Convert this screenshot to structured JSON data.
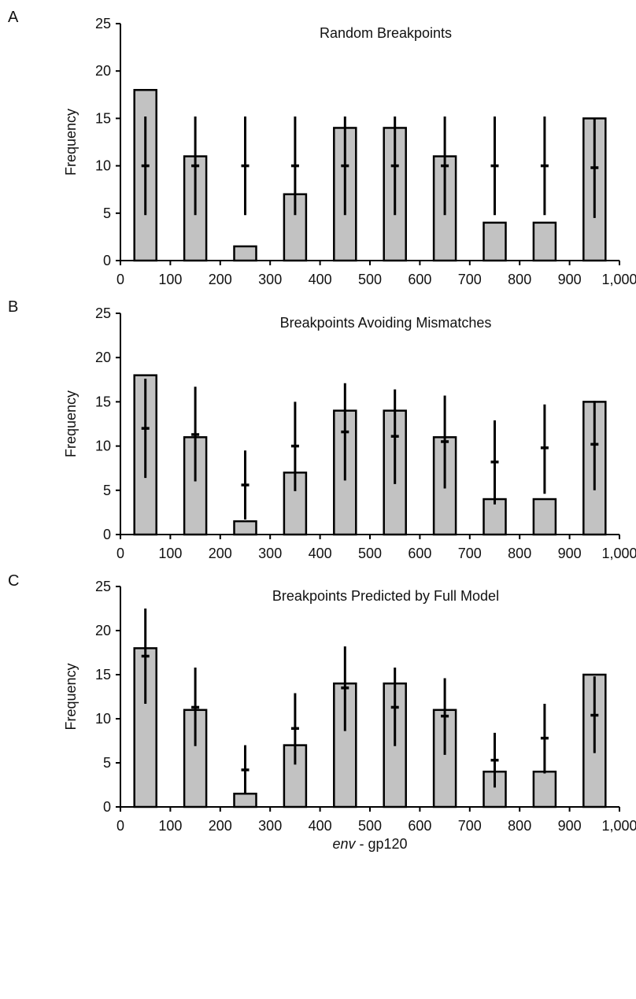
{
  "figure": {
    "xlabel_italic": "env",
    "xlabel_rest": " - gp120"
  },
  "chart_data": [
    {
      "panel": "A",
      "type": "bar",
      "title": "Random Breakpoints",
      "xlabel": "",
      "ylabel": "Frequency",
      "ylim": [
        0,
        25
      ],
      "xlim": [
        0,
        1000
      ],
      "yticks": [
        "0",
        "5",
        "10",
        "15",
        "20",
        "25"
      ],
      "xticks": [
        "0",
        "100",
        "200",
        "300",
        "400",
        "500",
        "600",
        "700",
        "800",
        "900",
        "1,000"
      ],
      "grid": false,
      "x": [
        50,
        150,
        250,
        350,
        450,
        550,
        650,
        750,
        850,
        950
      ],
      "values": [
        18,
        11,
        1.5,
        7,
        14,
        14,
        11,
        4,
        4,
        15
      ],
      "expected": {
        "mean": [
          10,
          10,
          10,
          10,
          10,
          10,
          10,
          10,
          10,
          9.8
        ],
        "low": [
          4.8,
          4.8,
          4.8,
          4.8,
          4.8,
          4.8,
          4.8,
          4.8,
          4.8,
          4.5
        ],
        "high": [
          15.2,
          15.2,
          15.2,
          15.2,
          15.2,
          15.2,
          15.2,
          15.2,
          15.2,
          15
        ]
      }
    },
    {
      "panel": "B",
      "type": "bar",
      "title": "Breakpoints Avoiding Mismatches",
      "xlabel": "",
      "ylabel": "Frequency",
      "ylim": [
        0,
        25
      ],
      "xlim": [
        0,
        1000
      ],
      "yticks": [
        "0",
        "5",
        "10",
        "15",
        "20",
        "25"
      ],
      "xticks": [
        "0",
        "100",
        "200",
        "300",
        "400",
        "500",
        "600",
        "700",
        "800",
        "900",
        "1,000"
      ],
      "grid": false,
      "x": [
        50,
        150,
        250,
        350,
        450,
        550,
        650,
        750,
        850,
        950
      ],
      "values": [
        18,
        11,
        1.5,
        7,
        14,
        14,
        11,
        4,
        4,
        15
      ],
      "expected": {
        "mean": [
          12,
          11.3,
          5.6,
          10,
          11.6,
          11.1,
          10.5,
          8.2,
          9.8,
          10.2
        ],
        "low": [
          6.4,
          6,
          1.7,
          4.9,
          6.1,
          5.7,
          5.2,
          3.4,
          4.6,
          5
        ],
        "high": [
          17.6,
          16.7,
          9.5,
          15,
          17.1,
          16.4,
          15.7,
          12.9,
          14.7,
          15.1
        ]
      }
    },
    {
      "panel": "C",
      "type": "bar",
      "title": "Breakpoints Predicted by Full Model",
      "xlabel": "env - gp120",
      "ylabel": "Frequency",
      "ylim": [
        0,
        25
      ],
      "xlim": [
        0,
        1000
      ],
      "yticks": [
        "0",
        "5",
        "10",
        "15",
        "20",
        "25"
      ],
      "xticks": [
        "0",
        "100",
        "200",
        "300",
        "400",
        "500",
        "600",
        "700",
        "800",
        "900",
        "1,000"
      ],
      "grid": false,
      "x": [
        50,
        150,
        250,
        350,
        450,
        550,
        650,
        750,
        850,
        950
      ],
      "values": [
        18,
        11,
        1.5,
        7,
        14,
        14,
        11,
        4,
        4,
        15
      ],
      "expected": {
        "mean": [
          17.1,
          11.3,
          4.2,
          8.9,
          13.5,
          11.3,
          10.3,
          5.3,
          7.8,
          10.4
        ],
        "low": [
          11.7,
          6.9,
          1.5,
          4.8,
          8.6,
          6.9,
          5.9,
          2.2,
          3.8,
          6.1
        ],
        "high": [
          22.5,
          15.8,
          7,
          12.9,
          18.2,
          15.8,
          14.6,
          8.4,
          11.7,
          14.8
        ]
      }
    }
  ]
}
